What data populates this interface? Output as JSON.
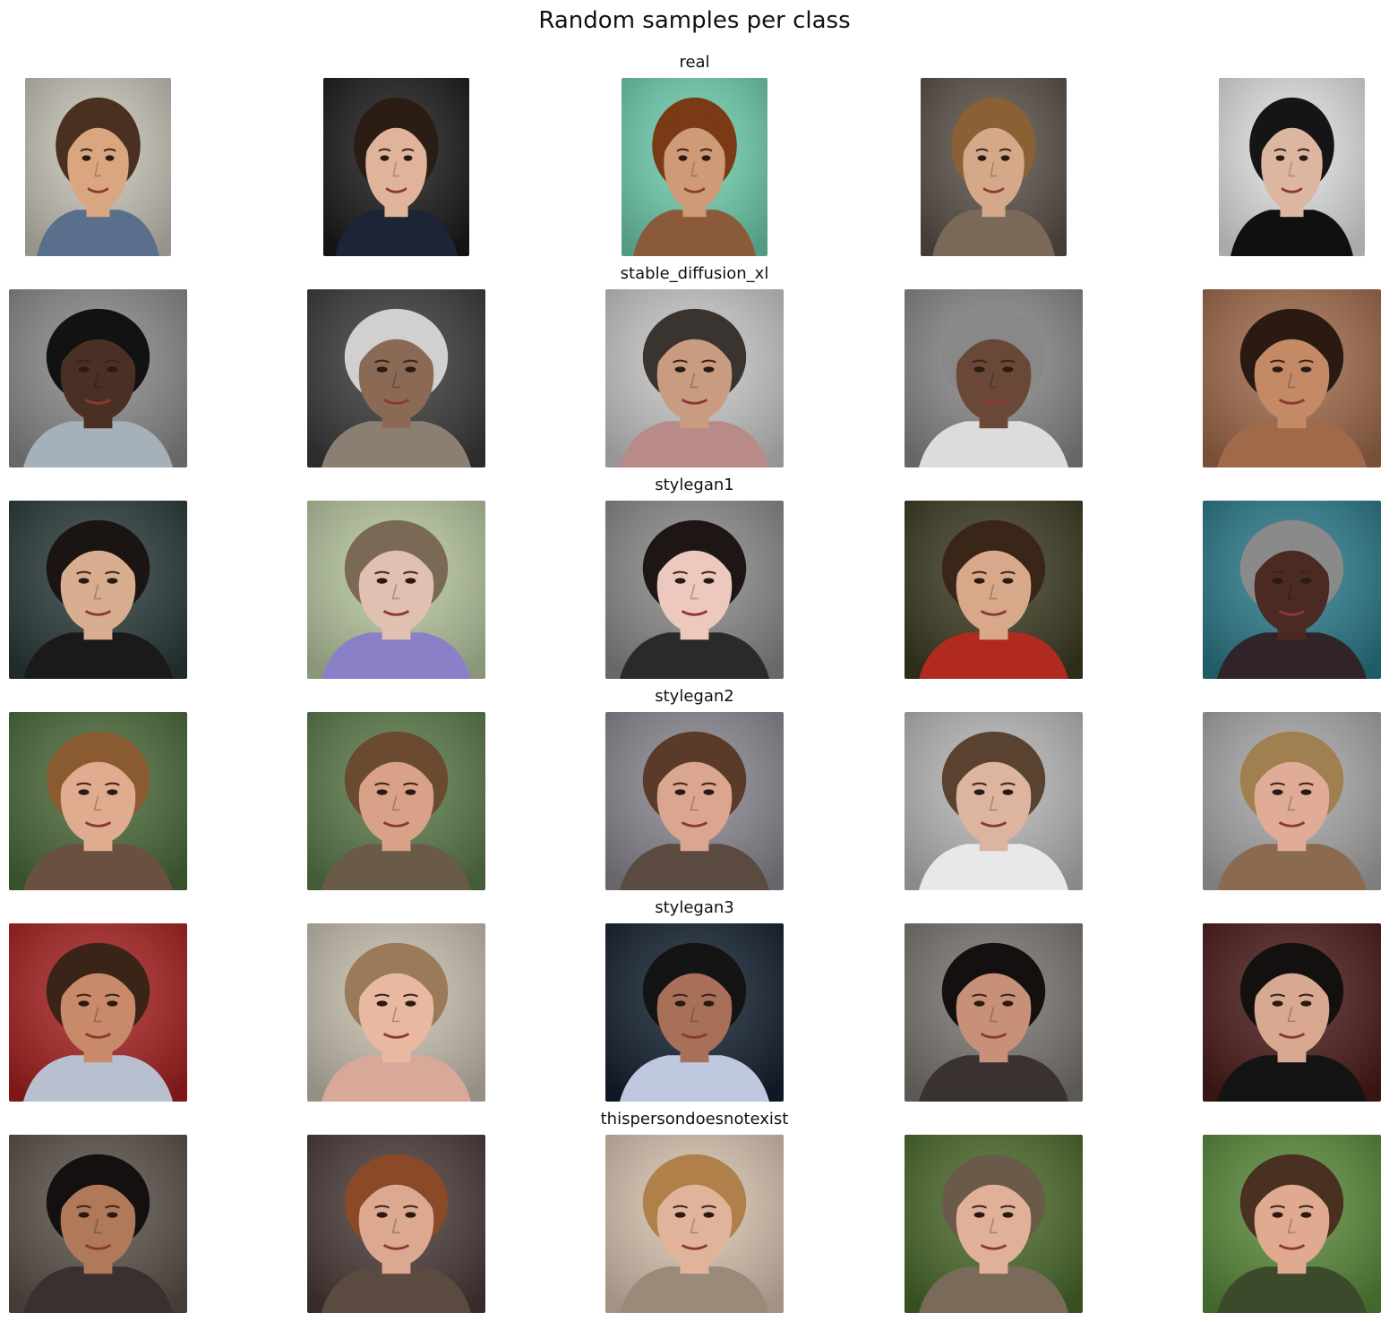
{
  "title": "Random samples per class",
  "rows": [
    {
      "label": "real",
      "samples": [
        {
          "name": "face-photo",
          "bg": "#c8c5b8",
          "skin": "#d9a67f",
          "hair": "#4a3020",
          "shirt": "#5a6f8c"
        },
        {
          "name": "face-photo",
          "bg": "#1a1a1a",
          "skin": "#e0b49a",
          "hair": "#2b1d14",
          "shirt": "#1c2435"
        },
        {
          "name": "face-photo",
          "bg": "#6fcfae",
          "skin": "#cf9a78",
          "hair": "#7a3a15",
          "shirt": "#8a5a3a"
        },
        {
          "name": "face-photo",
          "bg": "#5a5048",
          "skin": "#d4a888",
          "hair": "#8a6035",
          "shirt": "#7a6858"
        },
        {
          "name": "face-photo",
          "bg": "#e2e2e2",
          "skin": "#dcb6a0",
          "hair": "#151515",
          "shirt": "#101010"
        }
      ]
    },
    {
      "label": "stable_diffusion_xl",
      "samples": [
        {
          "name": "face-photo",
          "bg": "#8a8a8a",
          "skin": "#4a3024",
          "hair": "#121212",
          "shirt": "#a5b0b8"
        },
        {
          "name": "face-photo",
          "bg": "#3a3a3a",
          "skin": "#8a6a55",
          "hair": "#d0d0d0",
          "shirt": "#8a7f70"
        },
        {
          "name": "face-photo",
          "bg": "#c8c8c8",
          "skin": "#c99c82",
          "hair": "#3a3430",
          "shirt": "#b88a88"
        },
        {
          "name": "face-photo",
          "bg": "#8a8888",
          "skin": "#6a4838",
          "hair": "#888888",
          "shirt": "#dcdcdc"
        },
        {
          "name": "face-photo",
          "bg": "#a06a4a",
          "skin": "#c48a66",
          "hair": "#2a1a12",
          "shirt": "#a06a4a"
        }
      ]
    },
    {
      "label": "stylegan1",
      "samples": [
        {
          "name": "face-photo",
          "bg": "#2a3a3a",
          "skin": "#d9ae90",
          "hair": "#1a1412",
          "shirt": "#1a1a1a"
        },
        {
          "name": "face-photo",
          "bg": "#b8c8a0",
          "skin": "#e0c0b0",
          "hair": "#7a6a55",
          "shirt": "#8a80c8"
        },
        {
          "name": "face-photo",
          "bg": "#8a8a8a",
          "skin": "#ecc8be",
          "hair": "#1e1614",
          "shirt": "#2a2a2a"
        },
        {
          "name": "face-photo",
          "bg": "#3a3a20",
          "skin": "#d8a88a",
          "hair": "#3a2618",
          "shirt": "#b02a20"
        },
        {
          "name": "face-photo",
          "bg": "#2a7a8a",
          "skin": "#4a2a22",
          "hair": "#8a8a8a",
          "shirt": "#302428"
        }
      ]
    },
    {
      "label": "stylegan2",
      "samples": [
        {
          "name": "face-photo",
          "bg": "#4a6a3a",
          "skin": "#e0ac90",
          "hair": "#8a5a30",
          "shirt": "#6a5040"
        },
        {
          "name": "face-photo",
          "bg": "#5a7a4a",
          "skin": "#d9a288",
          "hair": "#6a4a30",
          "shirt": "#6a5a48"
        },
        {
          "name": "face-photo",
          "bg": "#8a8890",
          "skin": "#dba690",
          "hair": "#5a3a28",
          "shirt": "#5a4a40"
        },
        {
          "name": "face-photo",
          "bg": "#b8b8b8",
          "skin": "#dcb4a0",
          "hair": "#5a4230",
          "shirt": "#e8e8e8"
        },
        {
          "name": "face-photo",
          "bg": "#a8a8a8",
          "skin": "#e0ac98",
          "hair": "#a08050",
          "shirt": "#8a6a50"
        }
      ]
    },
    {
      "label": "stylegan3",
      "samples": [
        {
          "name": "face-photo",
          "bg": "#a82020",
          "skin": "#c88a6a",
          "hair": "#3a2418",
          "shirt": "#b8c0d0"
        },
        {
          "name": "face-photo",
          "bg": "#c8c0b0",
          "skin": "#e8b8a0",
          "hair": "#9a7a58",
          "shirt": "#d8a898"
        },
        {
          "name": "face-photo",
          "bg": "#142030",
          "skin": "#a87058",
          "hair": "#141414",
          "shirt": "#c0c8e0"
        },
        {
          "name": "face-photo",
          "bg": "#7a7670",
          "skin": "#c89078",
          "hair": "#141010",
          "shirt": "#3a3230"
        },
        {
          "name": "face-photo",
          "bg": "#4a1a18",
          "skin": "#d8a890",
          "hair": "#141010",
          "shirt": "#141414"
        }
      ]
    },
    {
      "label": "thispersondoesnotexist",
      "samples": [
        {
          "name": "face-photo",
          "bg": "#5a5048",
          "skin": "#b07a5a",
          "hair": "#141010",
          "shirt": "#3a3030"
        },
        {
          "name": "face-photo",
          "bg": "#4a3a38",
          "skin": "#dca890",
          "hair": "#8a4a28",
          "shirt": "#5a4a40"
        },
        {
          "name": "face-photo",
          "bg": "#d8c4b0",
          "skin": "#e0b49a",
          "hair": "#b0804a",
          "shirt": "#9a8a7a"
        },
        {
          "name": "face-photo",
          "bg": "#4a6a2a",
          "skin": "#e0b098",
          "hair": "#6a5a4a",
          "shirt": "#7a6a5a"
        },
        {
          "name": "face-photo",
          "bg": "#5a8a3a",
          "skin": "#e0aa90",
          "hair": "#4a3020",
          "shirt": "#3a4a2a"
        }
      ]
    }
  ]
}
